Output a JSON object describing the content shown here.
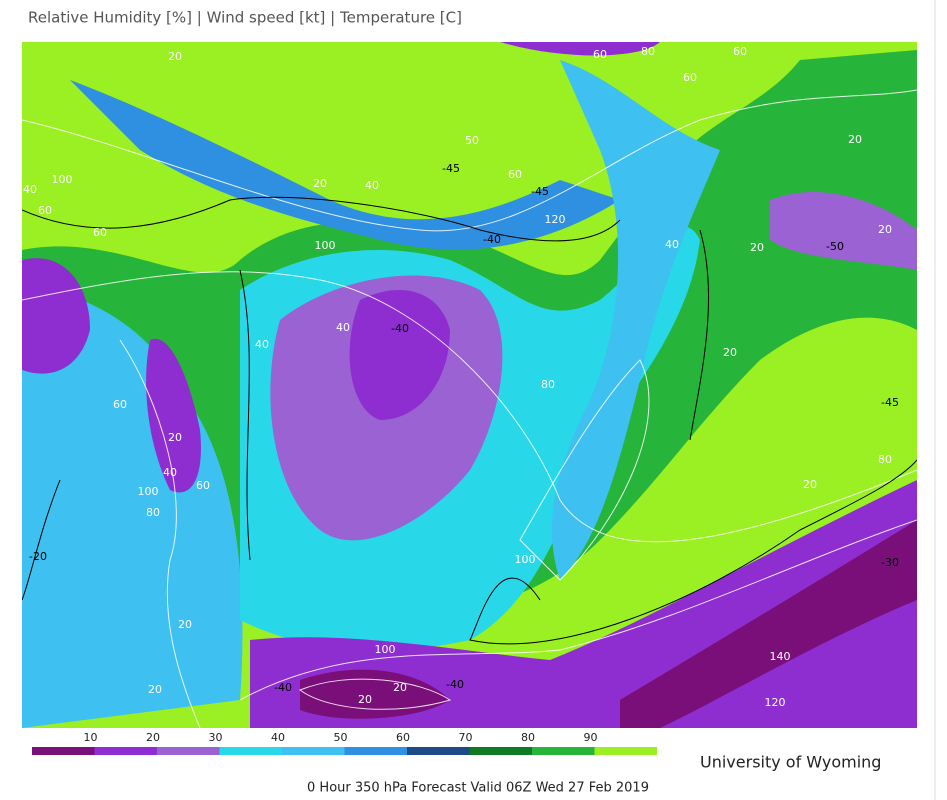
{
  "header": {
    "title": "Relative Humidity [%] | Wind speed [kt] | Temperature [C]"
  },
  "map": {
    "contour_labels": [
      "20",
      "60",
      "80",
      "60",
      "60",
      "50",
      "-45",
      "60",
      "-45",
      "120",
      "-40",
      "100",
      "40",
      "20",
      "-40",
      "40",
      "40",
      "80",
      "60",
      "20",
      "40",
      "100",
      "80",
      "60",
      "-20",
      "100",
      "20",
      "20",
      "-40",
      "100",
      "20",
      "-40",
      "20",
      "140",
      "120",
      "-30",
      "-45",
      "80",
      "20",
      "20",
      "20",
      "-50",
      "20",
      "20",
      "40",
      "60",
      "100",
      "60",
      "40"
    ]
  },
  "colorbar": {
    "colors": [
      "#7a0f7a",
      "#8f2ed0",
      "#9a62d2",
      "#28d8e8",
      "#3ec0f0",
      "#2f8fe0",
      "#1e4a86",
      "#0e7a22",
      "#27b43a",
      "#9af022"
    ],
    "ticks": [
      10,
      20,
      30,
      40,
      50,
      60,
      70,
      80,
      90
    ]
  },
  "credit": "University of Wyoming",
  "footer": "0 Hour 350 hPa Forecast Valid 06Z Wed 27 Feb 2019"
}
